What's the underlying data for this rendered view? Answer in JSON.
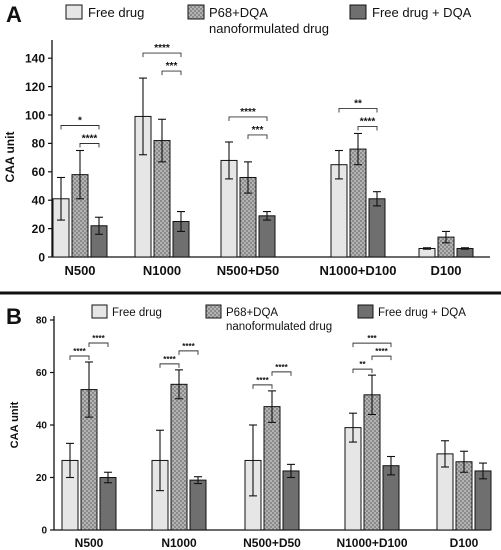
{
  "colors": {
    "free": "#e6e6e6",
    "nano": "#a9a9a9",
    "combo": "#6f6f6f",
    "axis": "#111111",
    "bracket": "#333333"
  },
  "chart_data": [
    {
      "panel": "A",
      "type": "bar",
      "ylabel": "CAA unit",
      "ylim": [
        0,
        150
      ],
      "yticks": [
        0,
        20,
        40,
        60,
        80,
        100,
        120,
        140
      ],
      "categories": [
        "N500",
        "N1000",
        "N500+D50",
        "N1000+D100",
        "D100"
      ],
      "legend": [
        "Free drug",
        "P68+DQA nanoformulated drug",
        "Free drug + DQA"
      ],
      "series": [
        {
          "name": "Free drug",
          "values": [
            41,
            99,
            68,
            65,
            6
          ],
          "errors": [
            15,
            27,
            13,
            10,
            0.5
          ]
        },
        {
          "name": "P68+DQA nanoformulated drug",
          "values": [
            58,
            82,
            56,
            76,
            14
          ],
          "errors": [
            17,
            15,
            11,
            11,
            4
          ]
        },
        {
          "name": "Free drug + DQA",
          "values": [
            22,
            25,
            29,
            41,
            6
          ],
          "errors": [
            6,
            7,
            3,
            5,
            0.5
          ]
        }
      ],
      "significance": [
        {
          "category": "N500",
          "from": 0,
          "to": 2,
          "label": "*"
        },
        {
          "category": "N500",
          "from": 1,
          "to": 2,
          "label": "****"
        },
        {
          "category": "N1000",
          "from": 0,
          "to": 2,
          "label": "****"
        },
        {
          "category": "N1000",
          "from": 1,
          "to": 2,
          "label": "***"
        },
        {
          "category": "N500+D50",
          "from": 0,
          "to": 2,
          "label": "****"
        },
        {
          "category": "N500+D50",
          "from": 1,
          "to": 2,
          "label": "***"
        },
        {
          "category": "N1000+D100",
          "from": 0,
          "to": 2,
          "label": "**"
        },
        {
          "category": "N1000+D100",
          "from": 1,
          "to": 2,
          "label": "****"
        }
      ]
    },
    {
      "panel": "B",
      "type": "bar",
      "ylabel": "CAA unit",
      "ylim": [
        0,
        80
      ],
      "yticks": [
        0,
        20,
        40,
        60,
        80
      ],
      "categories": [
        "N500",
        "N1000",
        "N500+D50",
        "N1000+D100",
        "D100"
      ],
      "legend": [
        "Free drug",
        "P68+DQA nanoformulated drug",
        "Free drug + DQA"
      ],
      "series": [
        {
          "name": "Free drug",
          "values": [
            26.5,
            26.5,
            26.5,
            39,
            29
          ],
          "errors": [
            6.5,
            11.5,
            13.5,
            5.5,
            5
          ]
        },
        {
          "name": "P68+DQA nanoformulated drug",
          "values": [
            53.5,
            55.5,
            47,
            51.5,
            26
          ],
          "errors": [
            10.5,
            5.5,
            6,
            7.5,
            4
          ]
        },
        {
          "name": "Free drug + DQA",
          "values": [
            20,
            19,
            22.5,
            24.5,
            22.5
          ],
          "errors": [
            2,
            1.3,
            2.5,
            3.5,
            3
          ]
        }
      ],
      "significance": [
        {
          "category": "N500",
          "from": 0,
          "to": 1,
          "label": "****"
        },
        {
          "category": "N500",
          "from": 1,
          "to": 2,
          "label": "****"
        },
        {
          "category": "N1000",
          "from": 0,
          "to": 1,
          "label": "****"
        },
        {
          "category": "N1000",
          "from": 1,
          "to": 2,
          "label": "****"
        },
        {
          "category": "N500+D50",
          "from": 0,
          "to": 1,
          "label": "****"
        },
        {
          "category": "N500+D50",
          "from": 1,
          "to": 2,
          "label": "****"
        },
        {
          "category": "N1000+D100",
          "from": 0,
          "to": 2,
          "label": "***"
        },
        {
          "category": "N1000+D100",
          "from": 0,
          "to": 1,
          "label": "**"
        },
        {
          "category": "N1000+D100",
          "from": 1,
          "to": 2,
          "label": "****"
        }
      ]
    }
  ]
}
